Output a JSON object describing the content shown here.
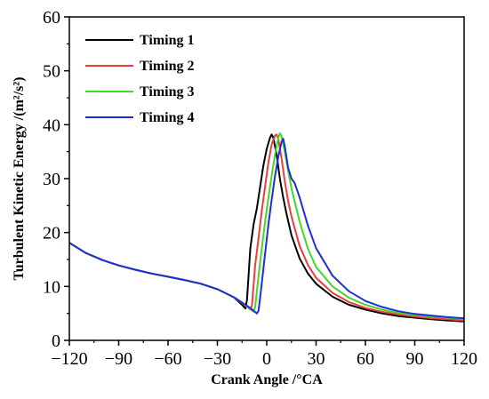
{
  "chart_data": {
    "type": "line",
    "title": "",
    "xlabel": "Crank Angle /°CA",
    "ylabel": "Turbulent Kinetic Energy /(m²/s²)",
    "xlim": [
      -120,
      120
    ],
    "ylim": [
      0,
      60
    ],
    "x_ticks": [
      -120,
      -90,
      -60,
      -30,
      0,
      30,
      60,
      90,
      120
    ],
    "x_tick_labels": [
      "−120",
      "−90",
      "−60",
      "−30",
      "0",
      "30",
      "60",
      "90",
      "120"
    ],
    "y_ticks": [
      0,
      10,
      20,
      30,
      40,
      50,
      60
    ],
    "y_tick_labels": [
      "0",
      "10",
      "20",
      "30",
      "40",
      "50",
      "60"
    ],
    "grid": false,
    "legend_position": "top-left",
    "series": [
      {
        "name": "Timing 1",
        "color": "#000000",
        "points": [
          [
            -120,
            18.1
          ],
          [
            -110,
            16.2
          ],
          [
            -100,
            14.9
          ],
          [
            -90,
            13.9
          ],
          [
            -80,
            13.1
          ],
          [
            -70,
            12.4
          ],
          [
            -60,
            11.8
          ],
          [
            -50,
            11.2
          ],
          [
            -40,
            10.5
          ],
          [
            -30,
            9.5
          ],
          [
            -20,
            8.0
          ],
          [
            -15,
            6.6
          ],
          [
            -13,
            5.9
          ],
          [
            -12,
            7.5
          ],
          [
            -10,
            17.0
          ],
          [
            -8,
            21.5
          ],
          [
            -6,
            24.5
          ],
          [
            -4,
            28.5
          ],
          [
            -2,
            32.5
          ],
          [
            0,
            35.5
          ],
          [
            2,
            37.6
          ],
          [
            3,
            38.2
          ],
          [
            4,
            37.6
          ],
          [
            6,
            34.5
          ],
          [
            8,
            30.0
          ],
          [
            10,
            26.5
          ],
          [
            12,
            23.5
          ],
          [
            15,
            19.5
          ],
          [
            20,
            15.2
          ],
          [
            25,
            12.4
          ],
          [
            30,
            10.5
          ],
          [
            40,
            8.1
          ],
          [
            50,
            6.6
          ],
          [
            60,
            5.7
          ],
          [
            70,
            5.0
          ],
          [
            80,
            4.5
          ],
          [
            90,
            4.2
          ],
          [
            100,
            3.9
          ],
          [
            110,
            3.7
          ],
          [
            120,
            3.5
          ]
        ]
      },
      {
        "name": "Timing 2",
        "color": "#e8403a",
        "points": [
          [
            -120,
            18.1
          ],
          [
            -110,
            16.2
          ],
          [
            -100,
            14.9
          ],
          [
            -90,
            13.9
          ],
          [
            -80,
            13.1
          ],
          [
            -70,
            12.4
          ],
          [
            -60,
            11.8
          ],
          [
            -50,
            11.2
          ],
          [
            -40,
            10.5
          ],
          [
            -30,
            9.5
          ],
          [
            -20,
            8.0
          ],
          [
            -15,
            6.9
          ],
          [
            -11,
            6.0
          ],
          [
            -10,
            5.7
          ],
          [
            -9,
            6.5
          ],
          [
            -7,
            14.0
          ],
          [
            -5,
            19.0
          ],
          [
            -3,
            24.0
          ],
          [
            -1,
            28.5
          ],
          [
            1,
            33.0
          ],
          [
            3,
            36.3
          ],
          [
            5,
            38.0
          ],
          [
            6,
            38.2
          ],
          [
            7,
            37.4
          ],
          [
            9,
            33.8
          ],
          [
            11,
            29.5
          ],
          [
            13,
            25.8
          ],
          [
            15,
            23.0
          ],
          [
            20,
            17.5
          ],
          [
            25,
            14.0
          ],
          [
            30,
            11.6
          ],
          [
            40,
            8.8
          ],
          [
            50,
            7.1
          ],
          [
            60,
            6.0
          ],
          [
            70,
            5.3
          ],
          [
            80,
            4.8
          ],
          [
            90,
            4.4
          ],
          [
            100,
            4.1
          ],
          [
            110,
            3.9
          ],
          [
            120,
            3.7
          ]
        ]
      },
      {
        "name": "Timing 3",
        "color": "#44d62c",
        "points": [
          [
            -120,
            18.1
          ],
          [
            -110,
            16.2
          ],
          [
            -100,
            14.9
          ],
          [
            -90,
            13.9
          ],
          [
            -80,
            13.1
          ],
          [
            -70,
            12.4
          ],
          [
            -60,
            11.8
          ],
          [
            -50,
            11.2
          ],
          [
            -40,
            10.5
          ],
          [
            -30,
            9.5
          ],
          [
            -20,
            8.0
          ],
          [
            -15,
            7.0
          ],
          [
            -10,
            5.8
          ],
          [
            -8,
            5.3
          ],
          [
            -7,
            6.2
          ],
          [
            -5,
            12.0
          ],
          [
            -3,
            17.0
          ],
          [
            -1,
            22.0
          ],
          [
            1,
            26.5
          ],
          [
            3,
            30.5
          ],
          [
            5,
            34.5
          ],
          [
            7,
            37.5
          ],
          [
            8,
            38.4
          ],
          [
            9,
            37.9
          ],
          [
            11,
            35.0
          ],
          [
            13,
            31.5
          ],
          [
            15,
            28.2
          ],
          [
            18,
            24.5
          ],
          [
            20,
            22.0
          ],
          [
            25,
            17.0
          ],
          [
            30,
            13.6
          ],
          [
            40,
            10.0
          ],
          [
            50,
            7.9
          ],
          [
            60,
            6.6
          ],
          [
            70,
            5.7
          ],
          [
            80,
            5.1
          ],
          [
            90,
            4.7
          ],
          [
            100,
            4.4
          ],
          [
            110,
            4.2
          ],
          [
            120,
            4.0
          ]
        ]
      },
      {
        "name": "Timing 4",
        "color": "#1e2fd6",
        "points": [
          [
            -120,
            18.1
          ],
          [
            -110,
            16.2
          ],
          [
            -100,
            14.9
          ],
          [
            -90,
            13.9
          ],
          [
            -80,
            13.1
          ],
          [
            -70,
            12.4
          ],
          [
            -60,
            11.8
          ],
          [
            -50,
            11.2
          ],
          [
            -40,
            10.5
          ],
          [
            -30,
            9.5
          ],
          [
            -20,
            8.0
          ],
          [
            -15,
            7.0
          ],
          [
            -10,
            6.0
          ],
          [
            -6,
            5.0
          ],
          [
            -5,
            5.5
          ],
          [
            -3,
            10.5
          ],
          [
            -1,
            16.0
          ],
          [
            1,
            21.5
          ],
          [
            3,
            26.0
          ],
          [
            5,
            30.5
          ],
          [
            7,
            34.0
          ],
          [
            9,
            36.8
          ],
          [
            10,
            37.4
          ],
          [
            11,
            36.0
          ],
          [
            13,
            32.0
          ],
          [
            15,
            30.0
          ],
          [
            17,
            29.2
          ],
          [
            20,
            26.5
          ],
          [
            25,
            21.3
          ],
          [
            30,
            17.1
          ],
          [
            40,
            12.0
          ],
          [
            50,
            9.1
          ],
          [
            60,
            7.3
          ],
          [
            70,
            6.2
          ],
          [
            80,
            5.4
          ],
          [
            90,
            4.9
          ],
          [
            100,
            4.6
          ],
          [
            110,
            4.3
          ],
          [
            120,
            4.1
          ]
        ]
      }
    ]
  }
}
